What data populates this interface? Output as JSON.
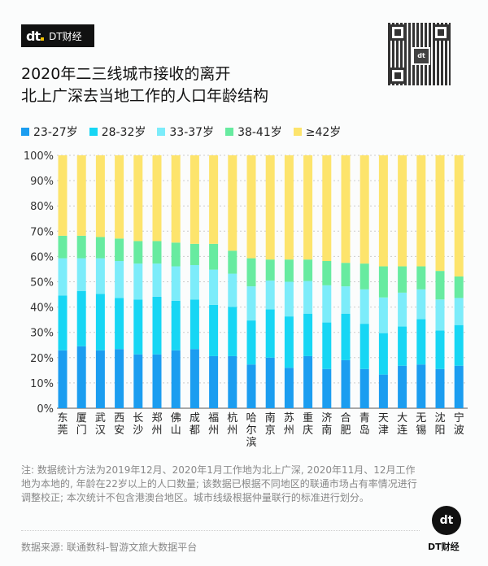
{
  "brand": {
    "logo": "dt",
    "name": "DT财经"
  },
  "title_lines": [
    "2020年二三线城市接收的离开",
    "北上广深去当地工作的人口年龄结构"
  ],
  "chart_data": {
    "type": "bar",
    "stacked": true,
    "title": "2020年二三线城市接收的离开北上广深去当地工作的人口年龄结构",
    "xlabel": "",
    "ylabel": "",
    "ylim": [
      0,
      100
    ],
    "yticks": [
      "0%",
      "10%",
      "20%",
      "30%",
      "40%",
      "50%",
      "60%",
      "70%",
      "80%",
      "90%",
      "100%"
    ],
    "grid": true,
    "legend_position": "top",
    "categories": [
      "东莞",
      "厦门",
      "武汉",
      "西安",
      "长沙",
      "郑州",
      "佛山",
      "成都",
      "福州",
      "杭州",
      "哈尔滨",
      "南京",
      "苏州",
      "重庆",
      "济南",
      "合肥",
      "青岛",
      "天津",
      "大连",
      "无锡",
      "沈阳",
      "宁波"
    ],
    "series": [
      {
        "name": "23-27岁",
        "color": "#1b9df0",
        "values": [
          22.9,
          24.5,
          22.9,
          23.4,
          21.3,
          21.3,
          22.9,
          23.4,
          20.6,
          20.6,
          17.3,
          20.0,
          16.0,
          20.6,
          15.5,
          19.0,
          15.5,
          13.3,
          16.8,
          17.3,
          15.5,
          16.8
        ]
      },
      {
        "name": "28-32岁",
        "color": "#17d6f4",
        "values": [
          21.7,
          21.8,
          22.3,
          20.2,
          21.7,
          22.8,
          19.6,
          19.6,
          20.3,
          19.5,
          17.4,
          19.1,
          20.3,
          16.8,
          18.4,
          18.4,
          17.9,
          16.4,
          15.5,
          17.9,
          15.2,
          16.1
        ]
      },
      {
        "name": "33-37岁",
        "color": "#7cecfa",
        "values": [
          14.7,
          13.0,
          14.1,
          14.6,
          14.2,
          13.1,
          13.6,
          13.6,
          13.9,
          13.1,
          13.5,
          11.4,
          13.7,
          12.9,
          14.7,
          10.8,
          13.6,
          14.1,
          13.4,
          11.8,
          12.3,
          10.7
        ]
      },
      {
        "name": "38-41岁",
        "color": "#67eba0",
        "values": [
          8.9,
          8.9,
          8.4,
          8.9,
          8.9,
          8.9,
          9.4,
          8.4,
          10.2,
          9.1,
          11.1,
          8.3,
          8.8,
          8.5,
          9.6,
          9.3,
          10.2,
          12.3,
          10.4,
          9.1,
          11.3,
          8.5
        ]
      },
      {
        "name": "≥42岁",
        "color": "#fde46c",
        "values": [
          31.8,
          31.8,
          32.3,
          32.9,
          33.9,
          33.9,
          34.5,
          35.0,
          35.0,
          37.7,
          40.7,
          41.2,
          41.2,
          41.2,
          41.8,
          42.5,
          42.8,
          43.9,
          43.9,
          43.9,
          45.7,
          47.9
        ]
      }
    ]
  },
  "note": "注: 数据统计方法为2019年12月、2020年1月工作地为北上广深, 2020年11月、12月工作地为本地的, 年龄在22岁以上的人口数量; 该数据已根据不同地区的联通市场占有率情况进行调整校正; 本次统计不包含港澳台地区。城市线级根据仲量联行的标准进行划分。",
  "source": "数据来源: 联通数科-智游文旅大数据平台",
  "footer_brand": {
    "logo": "dt",
    "name": "DT财经"
  }
}
